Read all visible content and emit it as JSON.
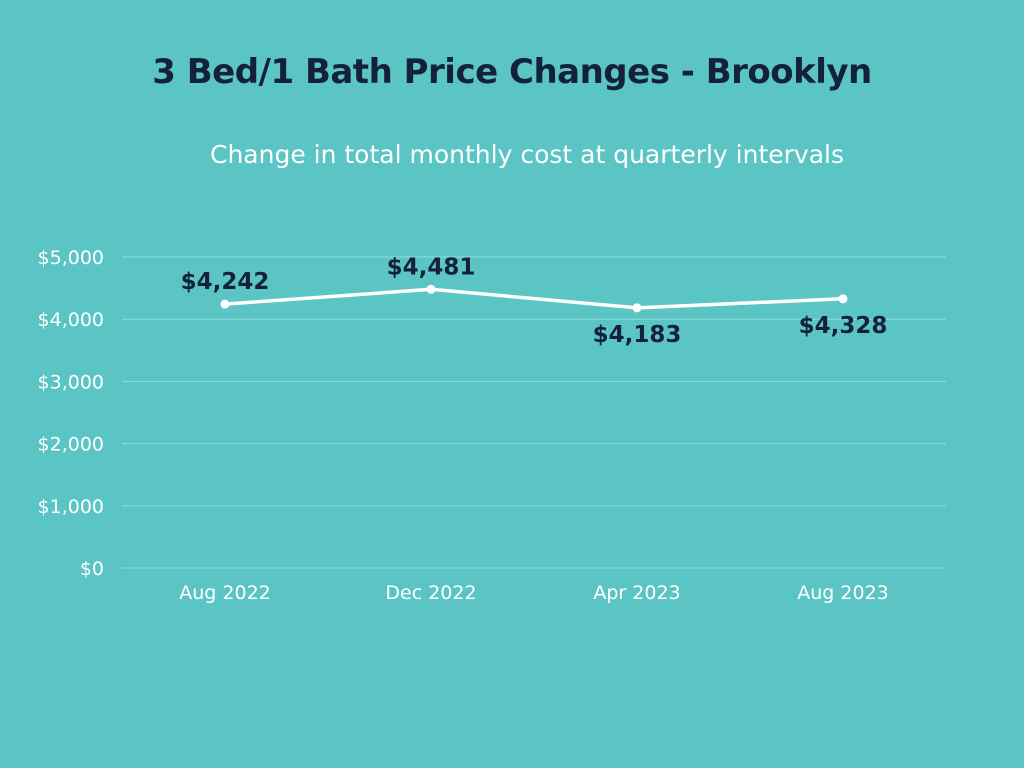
{
  "colors": {
    "background": "#5BC5C5",
    "title": "#14213A",
    "text": "#FFFFFF",
    "line": "#FFFFFF",
    "grid": "#8FDCDC"
  },
  "chart_data": {
    "type": "line",
    "title": "3 Bed/1 Bath Price Changes - Brooklyn",
    "subtitle": "Change in total monthly cost at quarterly intervals",
    "categories": [
      "Aug 2022",
      "Dec 2022",
      "Apr 2023",
      "Aug 2023"
    ],
    "series": [
      {
        "name": "Total monthly cost",
        "values": [
          4242,
          4481,
          4183,
          4328
        ],
        "data_labels": [
          "$4,242",
          "$4,481",
          "$4,183",
          "$4,328"
        ],
        "label_positions": [
          "above",
          "above",
          "below",
          "below"
        ]
      }
    ],
    "y_ticks": [
      0,
      1000,
      2000,
      3000,
      4000,
      5000
    ],
    "y_tick_labels": [
      "$0",
      "$1,000",
      "$2,000",
      "$3,000",
      "$4,000",
      "$5,000"
    ],
    "ylim": [
      0,
      5000
    ],
    "xlabel": "",
    "ylabel": "",
    "grid": true,
    "legend": "none"
  }
}
